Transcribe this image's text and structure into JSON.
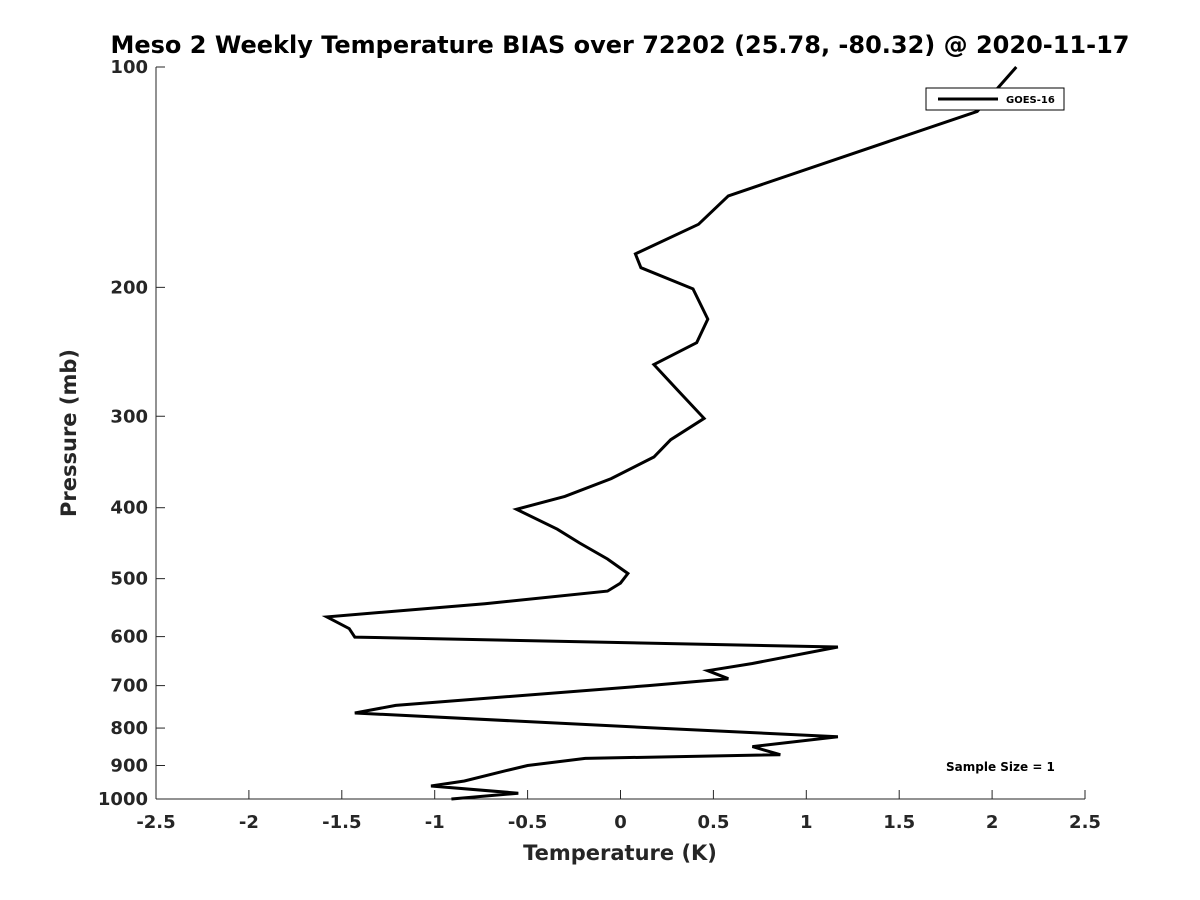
{
  "chart_data": {
    "type": "line",
    "title": "Meso 2 Weekly Temperature BIAS over 72202 (25.78, -80.32) @ 2020-11-17",
    "xlabel": "Temperature (K)",
    "ylabel": "Pressure (mb)",
    "xlim": [
      -2.5,
      2.5
    ],
    "ylim": [
      100,
      1000
    ],
    "yscale": "log",
    "yreversed": true,
    "x_ticks": [
      "-2.5",
      "-2",
      "-1.5",
      "-1",
      "-0.5",
      "0",
      "0.5",
      "1",
      "1.5",
      "2",
      "2.5"
    ],
    "y_ticks": [
      "100",
      "200",
      "300",
      "400",
      "500",
      "600",
      "700",
      "800",
      "900",
      "1000"
    ],
    "grid": false,
    "legend_position": "top-right",
    "annotation": "Sample Size = 1",
    "series": [
      {
        "name": "GOES-16",
        "color": "#000000",
        "points": [
          [
            2.13,
            100
          ],
          [
            1.92,
            115
          ],
          [
            0.58,
            150
          ],
          [
            0.42,
            164
          ],
          [
            0.08,
            180
          ],
          [
            0.11,
            188
          ],
          [
            0.39,
            201
          ],
          [
            0.47,
            221
          ],
          [
            0.41,
            238
          ],
          [
            0.18,
            255
          ],
          [
            0.3,
            275
          ],
          [
            0.45,
            302
          ],
          [
            0.27,
            323
          ],
          [
            0.18,
            341
          ],
          [
            -0.05,
            365
          ],
          [
            -0.3,
            386
          ],
          [
            -0.56,
            402
          ],
          [
            -0.34,
            428
          ],
          [
            -0.22,
            447
          ],
          [
            -0.07,
            470
          ],
          [
            0.04,
            492
          ],
          [
            0.0,
            507
          ],
          [
            -0.07,
            520
          ],
          [
            -0.73,
            541
          ],
          [
            -1.58,
            564
          ],
          [
            -1.46,
            585
          ],
          [
            -1.43,
            601
          ],
          [
            1.17,
            620
          ],
          [
            0.71,
            653
          ],
          [
            0.47,
            668
          ],
          [
            0.58,
            685
          ],
          [
            0.15,
            700
          ],
          [
            -1.21,
            745
          ],
          [
            -1.43,
            763
          ],
          [
            0.2,
            800
          ],
          [
            1.17,
            822
          ],
          [
            0.71,
            848
          ],
          [
            0.86,
            870
          ],
          [
            -0.19,
            880
          ],
          [
            -0.5,
            900
          ],
          [
            -0.62,
            915
          ],
          [
            -0.84,
            945
          ],
          [
            -1.02,
            960
          ],
          [
            -0.55,
            982
          ],
          [
            -0.91,
            1000
          ]
        ]
      }
    ]
  }
}
